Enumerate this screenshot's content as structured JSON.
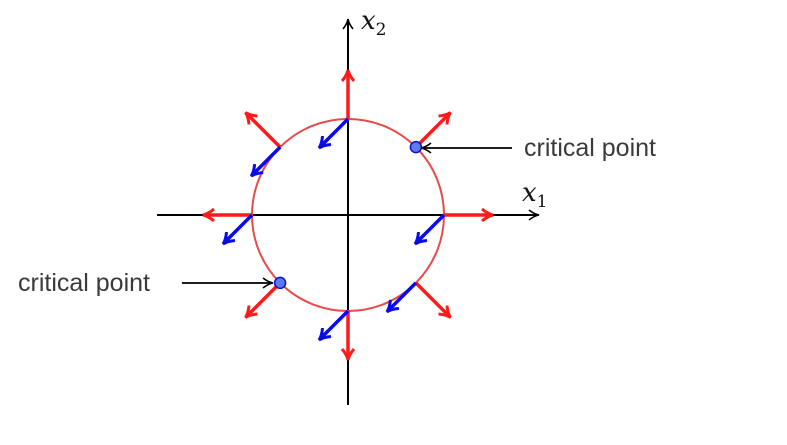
{
  "axes": {
    "x_label": "x",
    "x_subscript": "1",
    "y_label": "x",
    "y_subscript": "2"
  },
  "annotations": [
    {
      "id": "upper-right",
      "text": "critical point"
    },
    {
      "id": "lower-left",
      "text": "critical point"
    }
  ],
  "vectors": {
    "outward_color": "#ff1a1a",
    "inward_color": "#0a0aee",
    "outward_angles_deg": [
      0,
      45,
      90,
      135,
      180,
      225,
      270,
      315
    ],
    "inward_angles_deg": [
      0,
      90,
      135,
      180,
      270,
      315
    ],
    "inward_direction": "down-left"
  },
  "circle_color": "#e84a4a",
  "critical_points": {
    "angles_deg": [
      45,
      225
    ],
    "fill_color": "#5a7cf0",
    "stroke_color": "#1010c0"
  }
}
